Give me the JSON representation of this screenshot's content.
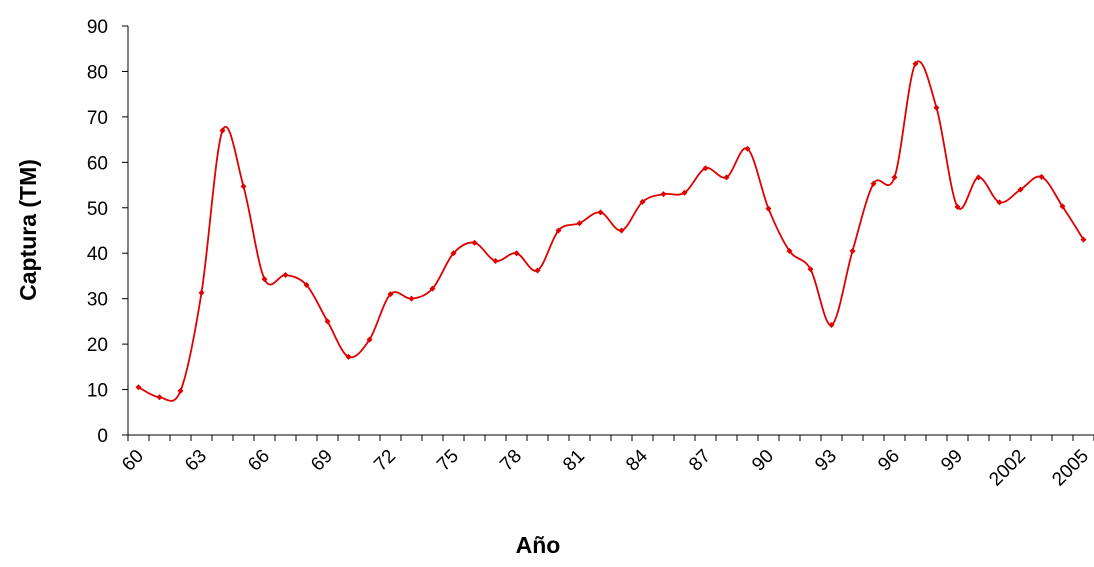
{
  "chart_data": {
    "type": "line",
    "xlabel": "Año",
    "ylabel": "Captura (TM)",
    "color": "#e00000",
    "smooth": true,
    "markers": true,
    "categories": [
      "60",
      null,
      null,
      "63",
      null,
      null,
      "66",
      null,
      null,
      "69",
      null,
      null,
      "72",
      null,
      null,
      "75",
      null,
      null,
      "78",
      null,
      null,
      "81",
      null,
      null,
      "84",
      null,
      null,
      "87",
      null,
      null,
      "90",
      null,
      null,
      "93",
      null,
      null,
      "96",
      null,
      null,
      "99",
      null,
      null,
      "2002",
      null,
      null,
      "2005"
    ],
    "values": [
      10.5,
      8.3,
      9.7,
      31.3,
      67,
      54.7,
      34.3,
      35.2,
      33,
      25,
      17.2,
      21,
      31,
      30,
      32.2,
      40,
      42.3,
      38.3,
      40,
      36.2,
      45,
      46.6,
      49,
      45,
      51.3,
      53,
      53.3,
      58.7,
      56.7,
      63,
      49.8,
      40.5,
      36.5,
      24.2,
      40.5,
      55.3,
      56.7,
      81.7,
      72,
      50.2,
      56.7,
      51.2,
      54,
      56.8,
      50.3,
      43
    ],
    "ylim": [
      0,
      90
    ],
    "yticks": [
      0,
      10,
      20,
      30,
      40,
      50,
      60,
      70,
      80,
      90
    ]
  }
}
